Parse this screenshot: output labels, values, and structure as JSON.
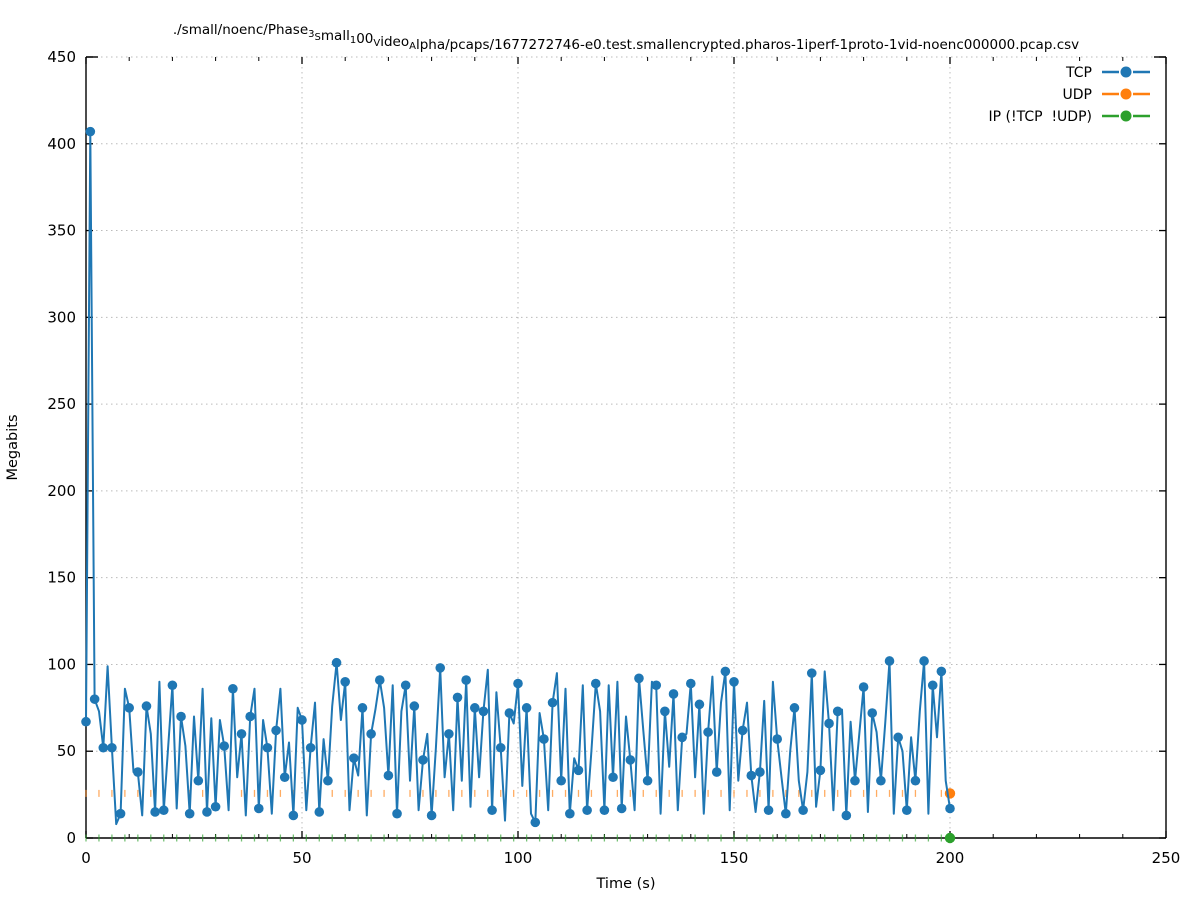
{
  "title_segments": [
    {
      "t": "./small/noenc/Phase",
      "sub": false
    },
    {
      "t": "3",
      "sub": true
    },
    {
      "t": "S",
      "sub": true
    },
    {
      "t": "mall",
      "sub": false
    },
    {
      "t": "1",
      "sub": true
    },
    {
      "t": "00",
      "sub": false
    },
    {
      "t": "V",
      "sub": true
    },
    {
      "t": "ideo",
      "sub": false
    },
    {
      "t": "A",
      "sub": true
    },
    {
      "t": "lpha/pcaps/1677272746-e0.test.smallencrypted.pharos-1iperf-1proto-1vid-noenc000000.pcap.csv",
      "sub": false
    }
  ],
  "legend": {
    "position": "top-right",
    "entries": [
      {
        "label": "TCP",
        "color": "#1f77b4"
      },
      {
        "label": "UDP",
        "color": "#ff7f0e"
      },
      {
        "label": "IP (!TCP  !UDP)",
        "color": "#2ca02c"
      }
    ]
  },
  "chart_data": {
    "type": "line",
    "title": "./small/noenc/Phase3Small100VideoAlpha/pcaps/1677272746-e0.test.smallencrypted.pharos-1iperf-1proto-1vid-noenc000000.pcap.csv",
    "xlabel": "Time (s)",
    "ylabel": "Megabits",
    "xlim": [
      0,
      250
    ],
    "ylim": [
      0,
      450
    ],
    "x_ticks": [
      0,
      50,
      100,
      150,
      200,
      250
    ],
    "y_ticks": [
      0,
      50,
      100,
      150,
      200,
      250,
      300,
      350,
      400,
      450
    ],
    "x_minor_tick_step": 10,
    "grid": true,
    "grid_style": "dotted",
    "grid_color": "#bbbbbb",
    "legend_position": "top-right",
    "series": [
      {
        "name": "TCP",
        "color": "#1f77b4",
        "style": "line-with-circle-markers",
        "x_start": 0,
        "x_step": 1,
        "marker_every": 2,
        "extra_marker_x": [
          1,
          200
        ],
        "values": [
          67,
          407,
          80,
          73,
          52,
          99,
          52,
          8,
          14,
          86,
          75,
          38,
          38,
          13,
          76,
          60,
          15,
          90,
          16,
          52,
          88,
          17,
          70,
          53,
          14,
          70,
          33,
          86,
          15,
          69,
          18,
          68,
          53,
          16,
          86,
          35,
          60,
          13,
          70,
          86,
          17,
          68,
          52,
          14,
          62,
          86,
          35,
          55,
          13,
          75,
          68,
          16,
          52,
          78,
          15,
          57,
          33,
          76,
          101,
          68,
          90,
          16,
          46,
          36,
          75,
          13,
          60,
          74,
          91,
          75,
          36,
          88,
          14,
          73,
          88,
          33,
          76,
          16,
          45,
          60,
          13,
          52,
          98,
          35,
          60,
          16,
          81,
          33,
          91,
          18,
          75,
          35,
          73,
          97,
          16,
          84,
          52,
          10,
          72,
          66,
          89,
          30,
          75,
          14,
          9,
          72,
          57,
          16,
          78,
          95,
          33,
          86,
          14,
          46,
          39,
          88,
          16,
          50,
          89,
          73,
          16,
          88,
          35,
          90,
          17,
          70,
          45,
          16,
          92,
          62,
          33,
          90,
          88,
          14,
          73,
          41,
          83,
          16,
          58,
          60,
          89,
          35,
          77,
          14,
          61,
          93,
          38,
          78,
          96,
          16,
          90,
          33,
          62,
          78,
          36,
          15,
          38,
          79,
          16,
          90,
          57,
          35,
          14,
          50,
          75,
          33,
          16,
          38,
          95,
          18,
          39,
          96,
          66,
          16,
          73,
          74,
          13,
          67,
          33,
          60,
          87,
          15,
          72,
          61,
          33,
          66,
          102,
          14,
          58,
          50,
          16,
          58,
          33,
          73,
          102,
          14,
          88,
          58,
          96,
          33,
          17
        ]
      },
      {
        "name": "UDP",
        "color": "#ff7f0e",
        "style": "vline-markers",
        "constant_value": 25.7,
        "x_range": [
          0,
          200
        ],
        "marker_spacing": 3,
        "end_marker": {
          "x": 200,
          "y": 25.7
        }
      },
      {
        "name": "IP (!TCP  !UDP)",
        "color": "#2ca02c",
        "style": "vline-markers",
        "constant_value": 0,
        "x_range": [
          0,
          200
        ],
        "marker_spacing": 3,
        "end_marker": {
          "x": 200,
          "y": 0
        }
      }
    ]
  }
}
